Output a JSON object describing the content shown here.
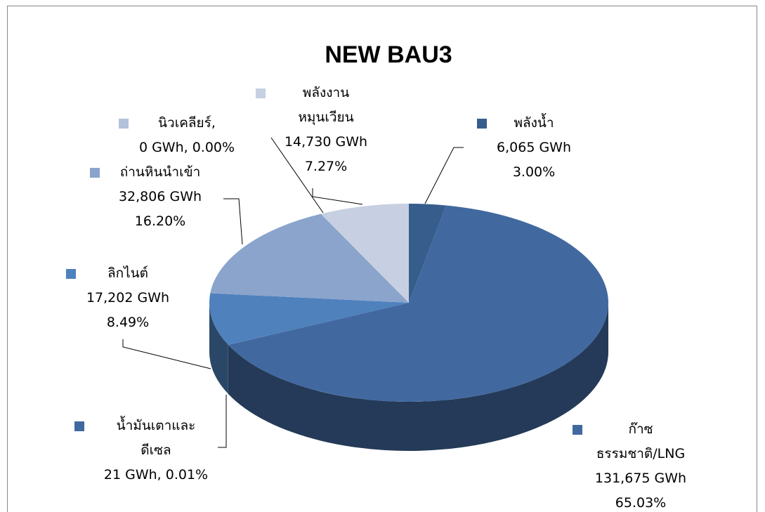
{
  "chart_data": {
    "type": "pie3d",
    "title": "NEW BAU3",
    "categories": [
      "พลังน้ำ",
      "ก๊าซ\nธรรมชาติ/LNG",
      "น้ำมันเตาและ\nดีเซล",
      "ลิกไนต์",
      "ถ่านหินนำเข้า",
      "นิวเคลียร์,",
      "พลังงาน\nหมุนเวียน"
    ],
    "values": [
      6065,
      131675,
      21,
      17202,
      32806,
      0,
      14730
    ],
    "value_labels": [
      "6,065 GWh",
      "131,675 GWh",
      "21 GWh,",
      "17,202 GWh",
      "32,806 GWh",
      "0 GWh,",
      "14,730 GWh"
    ],
    "percent_values": [
      3.0,
      65.03,
      0.01,
      8.49,
      16.2,
      0.0,
      7.27
    ],
    "percent_labels": [
      "3.00%",
      "65.03%",
      "0.01%",
      "8.49%",
      "16.20%",
      "0.00%",
      "7.27%"
    ],
    "colors": [
      "#375d8c",
      "#4169a0",
      "#4169a0",
      "#4f81bd",
      "#8aa4cc",
      "#b3c1da",
      "#c6d0e2"
    ]
  }
}
